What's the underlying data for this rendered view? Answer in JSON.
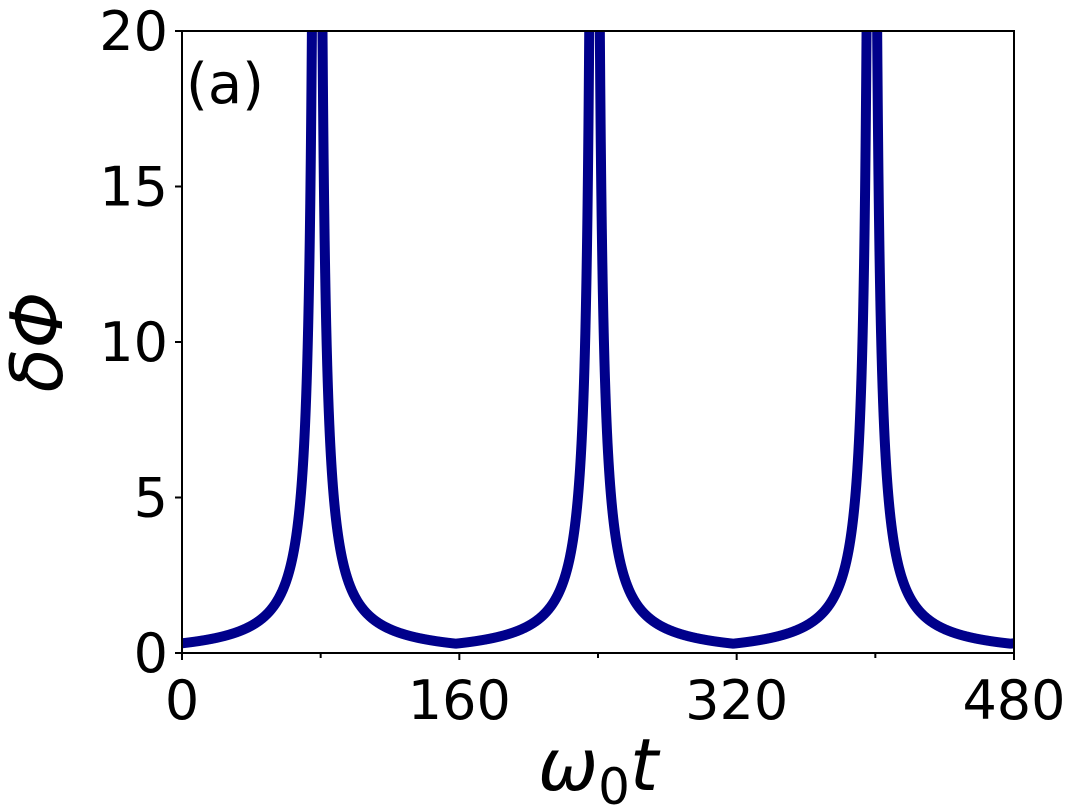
{
  "chart_data": {
    "type": "line",
    "panel_label": "(a)",
    "xlabel": {
      "main": "ω",
      "sub": "0",
      "tail": "t"
    },
    "ylabel": {
      "main": "δΦ"
    },
    "xlim": [
      0,
      480
    ],
    "ylim": [
      0,
      20
    ],
    "xticks": [
      0,
      160,
      320,
      480
    ],
    "xtick_labels": [
      "0",
      "160",
      "320",
      "480"
    ],
    "x_minor_ticks": [
      80,
      240,
      400
    ],
    "yticks": [
      0,
      5,
      10,
      15,
      20
    ],
    "ytick_labels": [
      "0",
      "5",
      "10",
      "15",
      "20"
    ],
    "grid": false,
    "legend": "none",
    "series": [
      {
        "color": "#00008b",
        "model": {
          "form": "periodic-cusp",
          "period": 160,
          "peak_x": 78,
          "baseline": 0.3,
          "amplitude": 0.4,
          "exponent": 1.2
        },
        "sample_points": [
          {
            "x": 0,
            "y": 0.3
          },
          {
            "x": 30,
            "y": 0.9
          },
          {
            "x": 50,
            "y": 2.0
          },
          {
            "x": 70,
            "y": 6.5
          },
          {
            "x": 75,
            "y": 14.7
          },
          {
            "x": 78,
            "y": 20
          },
          {
            "x": 81,
            "y": 20
          },
          {
            "x": 86,
            "y": 10.0
          },
          {
            "x": 100,
            "y": 3.4
          },
          {
            "x": 120,
            "y": 1.3
          },
          {
            "x": 156,
            "y": 0.3
          },
          {
            "x": 238,
            "y": 20
          },
          {
            "x": 316,
            "y": 0.3
          },
          {
            "x": 398,
            "y": 20
          },
          {
            "x": 476,
            "y": 0.3
          },
          {
            "x": 480,
            "y": 0.4
          }
        ]
      }
    ]
  }
}
